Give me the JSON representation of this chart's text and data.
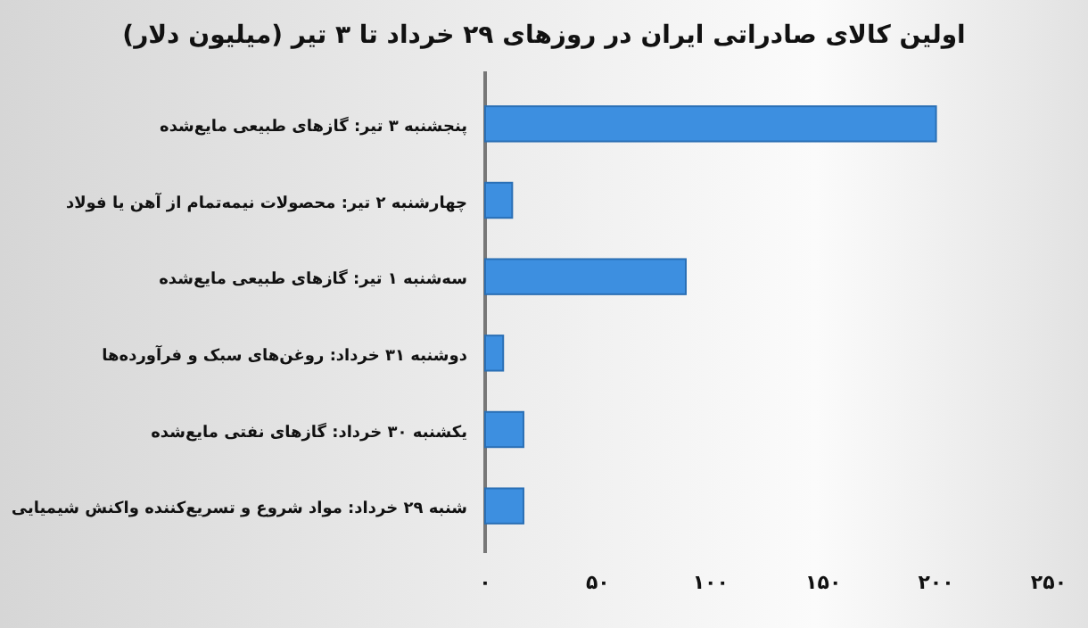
{
  "chart_data": {
    "type": "bar",
    "orientation": "horizontal",
    "title": "اولین کالای صادراتی ایران در روزهای ۲۹ خرداد تا ۳ تیر (میلیون دلار)",
    "categories": [
      "پنجشنبه ۳ تیر: گازهای طبیعی مایع‌شده",
      "چهارشنبه ۲ تیر: محصولات نیمه‌تمام از آهن یا فولاد",
      "سه‌شنبه ۱ تیر: گازهای طبیعی مایع‌شده",
      "دوشنبه ۳۱ خرداد: روغن‌های سبک و فرآورده‌ها",
      "یکشنبه ۳۰ خرداد: گازهای نفتی مایع‌شده",
      "شنبه ۲۹ خرداد: مواد شروع و تسریع‌کننده واکنش شیمیایی"
    ],
    "values": [
      200,
      12,
      89,
      8,
      17,
      17
    ],
    "color": "#3d8fe0",
    "xlim": [
      0,
      250
    ],
    "xticks": [
      {
        "value": 0,
        "label": "۰"
      },
      {
        "value": 50,
        "label": "۵۰"
      },
      {
        "value": 100,
        "label": "۱۰۰"
      },
      {
        "value": 150,
        "label": "۱۵۰"
      },
      {
        "value": 200,
        "label": "۲۰۰"
      },
      {
        "value": 250,
        "label": "۲۵۰"
      }
    ],
    "grid": false
  }
}
